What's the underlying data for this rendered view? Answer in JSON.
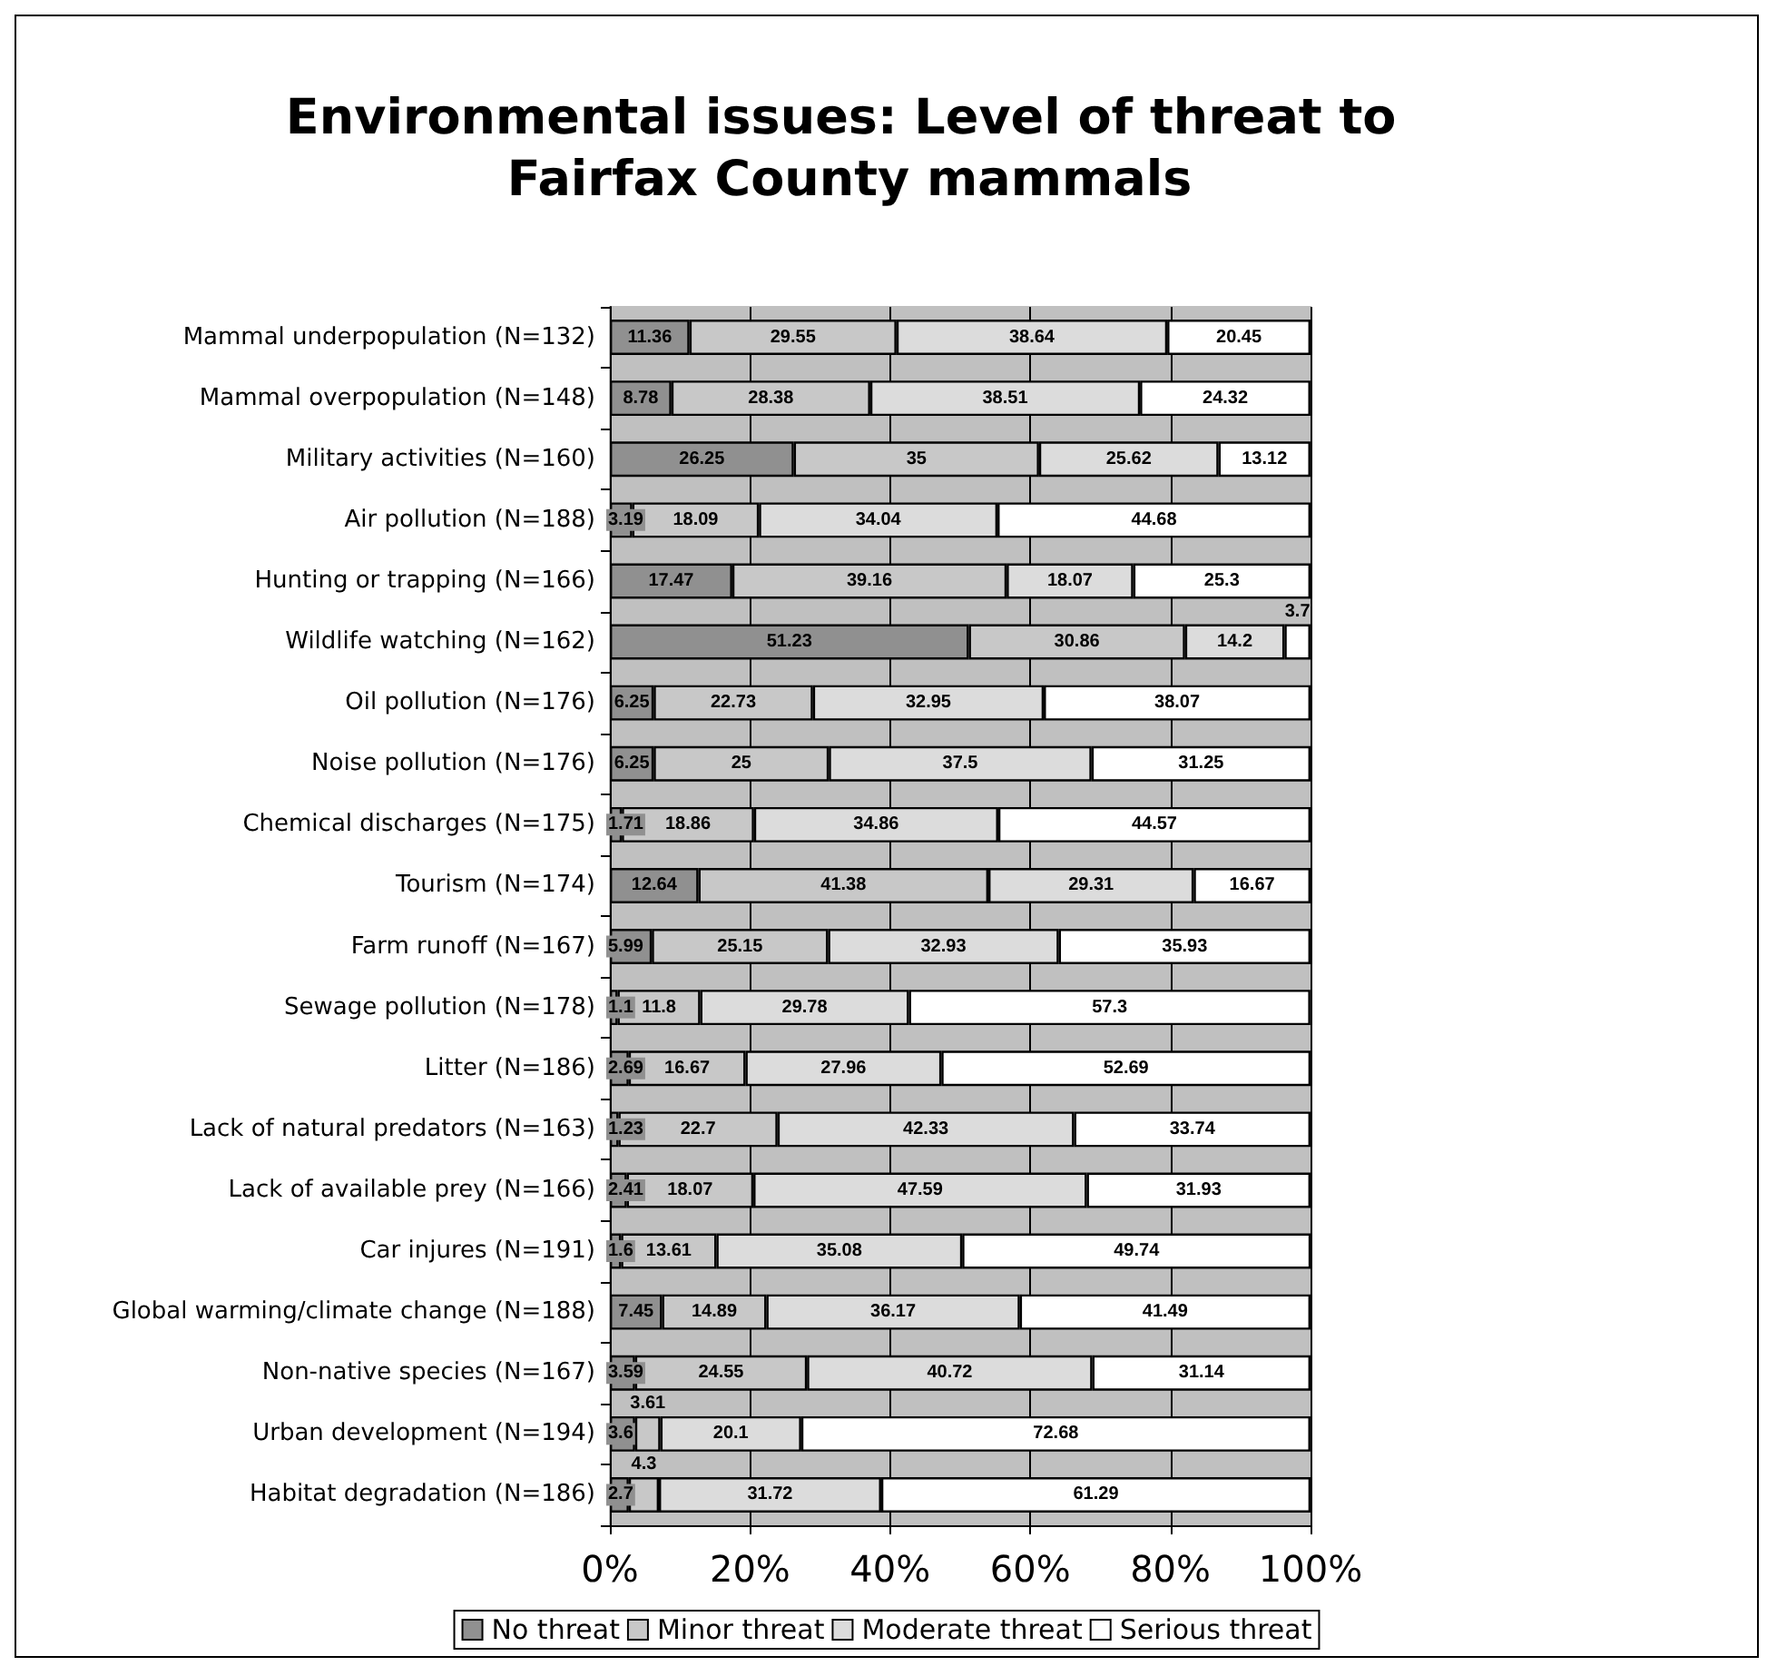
{
  "chart_data": {
    "type": "bar",
    "orientation": "horizontal",
    "stacked": true,
    "title": "Environmental issues: Level of threat to Fairfax County mammals",
    "categories": [
      "Mammal underpopulation (N=132)",
      "Mammal overpopulation (N=148)",
      "Military activities (N=160)",
      "Air pollution (N=188)",
      "Hunting or trapping (N=166)",
      "Wildlife watching (N=162)",
      "Oil pollution (N=176)",
      "Noise pollution (N=176)",
      "Chemical discharges (N=175)",
      "Tourism (N=174)",
      "Farm runoff (N=167)",
      "Sewage pollution (N=178)",
      "Litter (N=186)",
      "Lack of natural predators (N=163)",
      "Lack of available prey (N=166)",
      "Car injures (N=191)",
      "Global warming/climate change (N=188)",
      "Non-native species (N=167)",
      "Urban development (N=194)",
      "Habitat degradation (N=186)"
    ],
    "series": [
      {
        "name": "No threat",
        "color": "#909090",
        "values": [
          11.36,
          8.78,
          26.25,
          3.19,
          17.47,
          51.23,
          6.25,
          6.25,
          1.71,
          12.64,
          5.99,
          1.1,
          2.69,
          1.23,
          2.41,
          1.6,
          7.45,
          3.59,
          3.6,
          2.7
        ]
      },
      {
        "name": "Minor threat",
        "color": "#c8c8c8",
        "values": [
          29.55,
          28.38,
          35,
          18.09,
          39.16,
          30.86,
          22.73,
          25,
          18.86,
          41.38,
          25.15,
          11.8,
          16.67,
          22.7,
          18.07,
          13.61,
          14.89,
          24.55,
          3.61,
          4.3
        ]
      },
      {
        "name": "Moderate threat",
        "color": "#dcdcdc",
        "values": [
          38.64,
          38.51,
          25.62,
          34.04,
          18.07,
          14.2,
          32.95,
          37.5,
          34.86,
          29.31,
          32.93,
          29.78,
          27.96,
          42.33,
          47.59,
          35.08,
          36.17,
          40.72,
          20.1,
          31.72
        ]
      },
      {
        "name": "Serious threat",
        "color": "#ffffff",
        "values": [
          20.45,
          24.32,
          13.12,
          44.68,
          25.3,
          3.7,
          38.07,
          31.25,
          44.57,
          16.67,
          35.93,
          57.3,
          52.69,
          33.74,
          31.93,
          49.74,
          41.49,
          31.14,
          72.68,
          61.29
        ]
      }
    ],
    "xlim": [
      0,
      100
    ],
    "xticks": [
      {
        "value": 0,
        "label": "0%"
      },
      {
        "value": 20,
        "label": "20%"
      },
      {
        "value": 40,
        "label": "40%"
      },
      {
        "value": 60,
        "label": "60%"
      },
      {
        "value": 80,
        "label": "80%"
      },
      {
        "value": 100,
        "label": "100%"
      }
    ],
    "grid": "x",
    "legend": "bottom",
    "data_labels": true
  }
}
